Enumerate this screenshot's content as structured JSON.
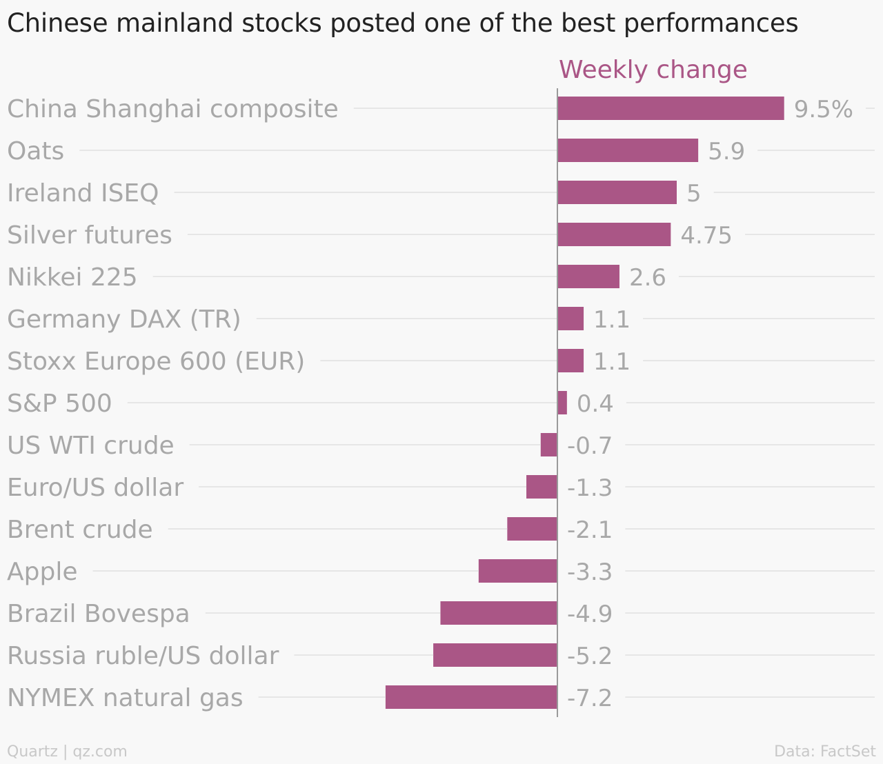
{
  "title": "Chinese mainland stocks posted one of the best performances",
  "footer": {
    "credit": "Quartz | qz.com",
    "source": "Data: FactSet"
  },
  "colors": {
    "bar": "#aa5686",
    "series_label": "#aa5686",
    "label_text": "#a8a8a8",
    "gridline": "#e6e6e6",
    "zero_line": "#9a9a9a",
    "title_text": "#222222",
    "footer_text": "#c8c8c8",
    "background": "#f8f8f8"
  },
  "chart_data": {
    "type": "bar",
    "orientation": "horizontal",
    "series": [
      {
        "name": "Weekly change",
        "values": [
          9.5,
          5.9,
          5,
          4.75,
          2.6,
          1.1,
          1.1,
          0.4,
          -0.7,
          -1.3,
          -2.1,
          -3.3,
          -4.9,
          -5.2,
          -7.2
        ],
        "value_labels": [
          "9.5%",
          "5.9",
          "5",
          "4.75",
          "2.6",
          "1.1",
          "1.1",
          "0.4",
          "-0.7",
          "-1.3",
          "-2.1",
          "-3.3",
          "-4.9",
          "-5.2",
          "-7.2"
        ]
      }
    ],
    "categories": [
      "China Shanghai composite",
      "Oats",
      "Ireland ISEQ",
      "Silver futures",
      "Nikkei 225",
      "Germany DAX (TR)",
      "Stoxx Europe 600 (EUR)",
      "S&P 500",
      "US WTI crude",
      "Euro/US dollar",
      "Brent crude",
      "Apple",
      "Brazil Bovespa",
      "Russia ruble/US dollar",
      "NYMEX natural gas"
    ],
    "xlim": [
      -7.2,
      12.8
    ],
    "grid": true,
    "legend": "none"
  }
}
